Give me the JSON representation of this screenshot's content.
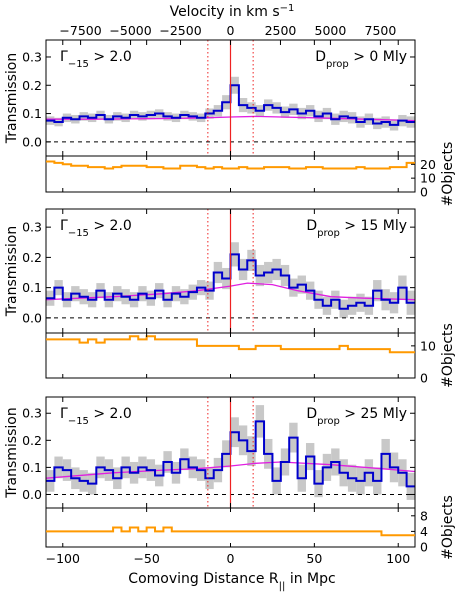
{
  "chart_data": {
    "type": "line",
    "top_axis": {
      "label": "Velocity in km s",
      "label_superscript": "−1",
      "range": [
        -9230,
        9230
      ],
      "ticks": [
        -7500,
        -5000,
        -2500,
        0,
        2500,
        5000,
        7500
      ],
      "tick_labels": [
        "−7500",
        "−5000",
        "−2500",
        "0",
        "2500",
        "5000",
        "7500"
      ]
    },
    "x_axis": {
      "label": "Comoving Distance R",
      "label_subscript": "||",
      "label_suffix": " in Mpc",
      "range": [
        -110,
        110
      ],
      "ticks": [
        -100,
        -50,
        0,
        50,
        100
      ],
      "tick_labels": [
        "−100",
        "−50",
        "0",
        "50",
        "100"
      ]
    },
    "transmission_axis": {
      "label": "Transmission",
      "range": [
        -0.05,
        0.36
      ],
      "ticks": [
        0.0,
        0.1,
        0.2,
        0.3
      ],
      "tick_labels": [
        "0.0",
        "0.1",
        "0.2",
        "0.3"
      ],
      "dashed_baseline": 0.0
    },
    "vertical_lines": {
      "solid_center": 0,
      "dotted": [
        -13.5,
        13.5
      ]
    },
    "bin_edges": [
      -110,
      -105,
      -100,
      -95,
      -90,
      -85,
      -80,
      -75,
      -70,
      -65,
      -60,
      -55,
      -50,
      -45,
      -40,
      -35,
      -30,
      -25,
      -20,
      -15,
      -10,
      -5,
      0,
      5,
      10,
      15,
      20,
      25,
      30,
      35,
      40,
      45,
      50,
      55,
      60,
      65,
      70,
      75,
      80,
      85,
      90,
      95,
      100,
      105,
      110
    ],
    "panels": [
      {
        "gamma_label": "Γ",
        "gamma_sub": "−15",
        "gamma_rest": " > 2.0",
        "dprop_label": "D",
        "dprop_sub": "prop",
        "dprop_rest": " > 0 Mly",
        "transmission": [
          0.075,
          0.07,
          0.085,
          0.08,
          0.09,
          0.085,
          0.095,
          0.08,
          0.09,
          0.085,
          0.095,
          0.09,
          0.095,
          0.1,
          0.09,
          0.085,
          0.095,
          0.09,
          0.085,
          0.1,
          0.11,
          0.14,
          0.2,
          0.13,
          0.12,
          0.11,
          0.13,
          0.12,
          0.105,
          0.115,
          0.1,
          0.11,
          0.09,
          0.1,
          0.08,
          0.09,
          0.085,
          0.07,
          0.08,
          0.065,
          0.07,
          0.06,
          0.075,
          0.07
        ],
        "uncertainty": [
          0.015,
          0.015,
          0.015,
          0.015,
          0.015,
          0.015,
          0.015,
          0.015,
          0.015,
          0.015,
          0.015,
          0.015,
          0.015,
          0.015,
          0.015,
          0.015,
          0.015,
          0.015,
          0.015,
          0.018,
          0.02,
          0.025,
          0.03,
          0.025,
          0.02,
          0.02,
          0.02,
          0.02,
          0.02,
          0.02,
          0.02,
          0.02,
          0.02,
          0.02,
          0.02,
          0.02,
          0.02,
          0.02,
          0.02,
          0.02,
          0.02,
          0.02,
          0.02,
          0.02
        ],
        "model_x": [
          -110,
          -80,
          -50,
          -30,
          -15,
          0,
          15,
          30,
          50,
          80,
          110
        ],
        "model_y": [
          0.08,
          0.08,
          0.082,
          0.083,
          0.085,
          0.088,
          0.09,
          0.088,
          0.085,
          0.08,
          0.075
        ],
        "objects": [
          22,
          21,
          20,
          19,
          19,
          18,
          18,
          17,
          18,
          19,
          19,
          19,
          18,
          18,
          17,
          17,
          19,
          19,
          18,
          17,
          18,
          17,
          17,
          18,
          17,
          17,
          18,
          18,
          18,
          17,
          17,
          18,
          18,
          17,
          17,
          17,
          17,
          18,
          17,
          17,
          17,
          18,
          18,
          21
        ],
        "objects_axis": {
          "label": "#Objects",
          "range": [
            0,
            26
          ],
          "ticks": [
            0,
            10,
            20
          ],
          "tick_labels": [
            "0",
            "10",
            "20"
          ]
        }
      },
      {
        "gamma_label": "Γ",
        "gamma_sub": "−15",
        "gamma_rest": " > 2.0",
        "dprop_label": "D",
        "dprop_sub": "prop",
        "dprop_rest": " > 15 Mly",
        "transmission": [
          0.065,
          0.1,
          0.06,
          0.08,
          0.07,
          0.06,
          0.09,
          0.06,
          0.08,
          0.07,
          0.06,
          0.08,
          0.065,
          0.09,
          0.06,
          0.08,
          0.07,
          0.085,
          0.1,
          0.09,
          0.15,
          0.13,
          0.21,
          0.16,
          0.19,
          0.14,
          0.15,
          0.16,
          0.14,
          0.1,
          0.11,
          0.09,
          0.06,
          0.04,
          0.06,
          0.03,
          0.04,
          0.05,
          0.04,
          0.09,
          0.06,
          0.05,
          0.1,
          0.05
        ],
        "uncertainty": [
          0.025,
          0.025,
          0.025,
          0.025,
          0.025,
          0.025,
          0.025,
          0.025,
          0.025,
          0.025,
          0.025,
          0.025,
          0.025,
          0.025,
          0.025,
          0.025,
          0.025,
          0.025,
          0.025,
          0.03,
          0.035,
          0.035,
          0.04,
          0.035,
          0.035,
          0.035,
          0.035,
          0.035,
          0.035,
          0.03,
          0.03,
          0.03,
          0.03,
          0.03,
          0.03,
          0.03,
          0.03,
          0.03,
          0.03,
          0.035,
          0.035,
          0.035,
          0.04,
          0.04
        ],
        "model_x": [
          -110,
          -70,
          -40,
          -20,
          0,
          10,
          25,
          40,
          60,
          80,
          110
        ],
        "model_y": [
          0.06,
          0.07,
          0.08,
          0.09,
          0.105,
          0.115,
          0.11,
          0.09,
          0.07,
          0.065,
          0.06
        ],
        "objects": [
          12,
          12,
          12,
          12,
          11,
          12,
          11,
          12,
          12,
          12,
          13,
          12,
          13,
          12,
          12,
          12,
          12,
          12,
          10,
          10,
          10,
          10,
          10,
          9,
          9,
          10,
          10,
          10,
          9,
          9,
          9,
          9,
          9,
          9,
          9,
          10,
          9,
          9,
          9,
          9,
          9,
          8,
          8,
          8
        ],
        "objects_axis": {
          "label": "#Objects",
          "range": [
            0,
            14
          ],
          "ticks": [
            0,
            10
          ],
          "tick_labels": [
            "0",
            "10"
          ]
        }
      },
      {
        "gamma_label": "Γ",
        "gamma_sub": "−15",
        "gamma_rest": " > 2.0",
        "dprop_label": "D",
        "dprop_sub": "prop",
        "dprop_rest": " > 25 Mly",
        "transmission": [
          0.05,
          0.1,
          0.09,
          0.06,
          0.05,
          0.04,
          0.1,
          0.09,
          0.06,
          0.1,
          0.08,
          0.1,
          0.09,
          0.07,
          0.12,
          0.08,
          0.13,
          0.1,
          0.09,
          0.06,
          0.09,
          0.15,
          0.23,
          0.2,
          0.16,
          0.27,
          0.15,
          0.05,
          0.12,
          0.21,
          0.06,
          0.14,
          0.04,
          0.1,
          0.12,
          0.08,
          0.06,
          0.05,
          0.08,
          0.05,
          0.15,
          0.1,
          0.08,
          0.03
        ],
        "uncertainty": [
          0.04,
          0.04,
          0.04,
          0.04,
          0.04,
          0.04,
          0.04,
          0.04,
          0.04,
          0.04,
          0.04,
          0.04,
          0.04,
          0.04,
          0.04,
          0.04,
          0.04,
          0.04,
          0.04,
          0.04,
          0.045,
          0.05,
          0.055,
          0.055,
          0.055,
          0.06,
          0.055,
          0.05,
          0.05,
          0.055,
          0.05,
          0.05,
          0.05,
          0.05,
          0.05,
          0.05,
          0.05,
          0.05,
          0.05,
          0.05,
          0.055,
          0.055,
          0.05,
          0.05
        ],
        "model_x": [
          -110,
          -70,
          -40,
          -20,
          0,
          15,
          30,
          60,
          90,
          110
        ],
        "model_y": [
          0.06,
          0.08,
          0.09,
          0.095,
          0.105,
          0.115,
          0.12,
          0.11,
          0.095,
          0.085
        ],
        "objects": [
          4,
          4,
          4,
          4,
          4,
          4,
          4,
          4,
          5,
          4,
          5,
          4,
          5,
          4,
          5,
          4,
          4,
          4,
          4,
          4,
          4,
          4,
          4,
          4,
          4,
          4,
          4,
          4,
          4,
          4,
          4,
          4,
          4,
          4,
          4,
          4,
          4,
          4,
          4,
          4,
          3,
          3,
          3,
          3
        ],
        "objects_axis": {
          "label": "#Objects",
          "range": [
            0,
            10
          ],
          "ticks": [
            0,
            4,
            8
          ],
          "tick_labels": [
            "0",
            "4",
            "8"
          ]
        }
      }
    ],
    "colors": {
      "transmission": "#0000cc",
      "uncertainty": "#c8c8c8",
      "model": "#e020e0",
      "objects": "#ff9900",
      "center_line": "#ee2222",
      "dotted_lines": "#ee2222"
    }
  }
}
